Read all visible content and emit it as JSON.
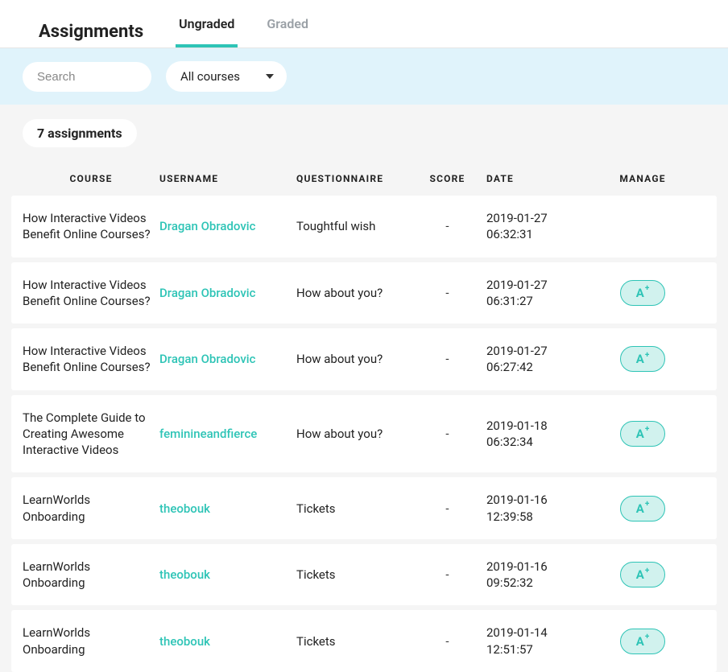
{
  "header": {
    "title": "Assignments",
    "tabs": [
      {
        "label": "Ungraded",
        "active": true
      },
      {
        "label": "Graded",
        "active": false
      }
    ]
  },
  "filters": {
    "search_placeholder": "Search",
    "course_selected": "All courses"
  },
  "list": {
    "count_label": "7 assignments",
    "columns": {
      "course": "COURSE",
      "username": "USERNAME",
      "questionnaire": "QUESTIONNAIRE",
      "score": "SCORE",
      "date": "DATE",
      "manage": "MANAGE"
    },
    "rows": [
      {
        "course": "How Interactive Videos Benefit Online Courses?",
        "username": "Dragan Obradovic",
        "questionnaire": "Toughtful wish",
        "score": "-",
        "date": "2019-01-27 06:32:31",
        "has_grade_button": false
      },
      {
        "course": "How Interactive Videos Benefit Online Courses?",
        "username": "Dragan Obradovic",
        "questionnaire": "How about you?",
        "score": "-",
        "date": "2019-01-27 06:31:27",
        "has_grade_button": true
      },
      {
        "course": "How Interactive Videos Benefit Online Courses?",
        "username": "Dragan Obradovic",
        "questionnaire": "How about you?",
        "score": "-",
        "date": "2019-01-27 06:27:42",
        "has_grade_button": true
      },
      {
        "course": "The Complete Guide to Creating Awesome Interactive Videos",
        "username": "feminineandfierce",
        "questionnaire": "How about you?",
        "score": "-",
        "date": "2019-01-18 06:32:34",
        "has_grade_button": true
      },
      {
        "course": "LearnWorlds Onboarding",
        "username": "theobouk",
        "questionnaire": "Tickets",
        "score": "-",
        "date": "2019-01-16 12:39:58",
        "has_grade_button": true
      },
      {
        "course": "LearnWorlds Onboarding",
        "username": "theobouk",
        "questionnaire": "Tickets",
        "score": "-",
        "date": "2019-01-16 09:52:32",
        "has_grade_button": true
      },
      {
        "course": "LearnWorlds Onboarding",
        "username": "theobouk",
        "questionnaire": "Tickets",
        "score": "-",
        "date": "2019-01-14 12:51:57",
        "has_grade_button": true
      }
    ]
  },
  "colors": {
    "accent": "#2ec4b6",
    "accent_light": "#d1f2ee",
    "filter_bg": "#e0f3fb",
    "page_bg": "#f5f5f5",
    "text": "#222222",
    "muted_text": "#9aa0a6"
  }
}
